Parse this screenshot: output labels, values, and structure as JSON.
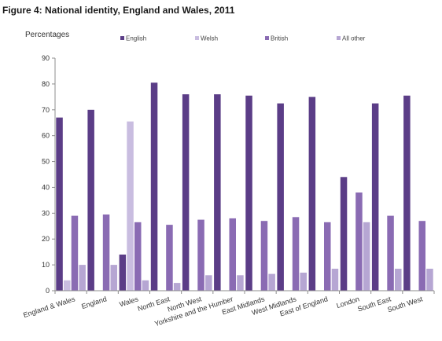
{
  "figure": {
    "title": "Figure 4: National identity, England and Wales, 2011"
  },
  "chart_data": {
    "type": "bar",
    "title": "Figure 4: National identity, England and Wales, 2011",
    "ylabel": "Percentages",
    "xlabel": "",
    "ylim": [
      0,
      90
    ],
    "yticks": [
      0,
      10,
      20,
      30,
      40,
      50,
      60,
      70,
      80,
      90
    ],
    "grid": false,
    "legend_position": "top",
    "categories": [
      "England & Wales",
      "England",
      "Wales",
      "North East",
      "North West",
      "Yorkshire and the Humber",
      "East Midlands",
      "West Midlands",
      "East of England",
      "London",
      "South East",
      "South West"
    ],
    "series": [
      {
        "name": "English",
        "color": "#5b3d87",
        "values": [
          67,
          70,
          14,
          80.5,
          76,
          76,
          75.5,
          72.5,
          75,
          44,
          72.5,
          75.5
        ]
      },
      {
        "name": "Welsh",
        "color": "#c9bde0",
        "values": [
          4,
          0,
          65.5,
          0,
          0,
          0,
          0,
          0,
          0,
          0,
          0,
          0
        ]
      },
      {
        "name": "British",
        "color": "#8a6bb3",
        "values": [
          29,
          29.5,
          26.5,
          25.5,
          27.5,
          28,
          27,
          28.5,
          26.5,
          38,
          29,
          27
        ]
      },
      {
        "name": "All other",
        "color": "#b6a6d3",
        "values": [
          10,
          10,
          4,
          3,
          6,
          6,
          6.5,
          7,
          8.5,
          26.5,
          8.5,
          8.5
        ]
      }
    ]
  }
}
